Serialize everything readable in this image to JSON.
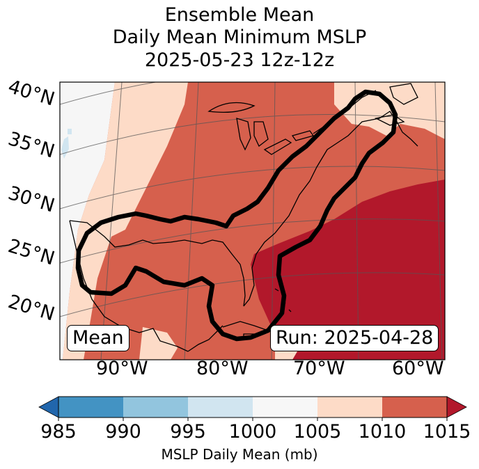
{
  "title": {
    "line1": "Ensemble Mean",
    "line2": "Daily Mean Minimum MSLP",
    "line3": "2025-05-23 12z-12z"
  },
  "map": {
    "lat_labels": [
      "40°N",
      "35°N",
      "30°N",
      "25°N",
      "20°N"
    ],
    "lon_labels": [
      "90°W",
      "80°W",
      "70°W",
      "60°W"
    ],
    "mean_box": "Mean",
    "run_box": "Run: 2025-04-28",
    "contour_color": "#000000",
    "region_colors": {
      "below_1000": "#f6f6f6",
      "range_1000_1005": "#fddbc7",
      "range_1005_1010": "#d6604d",
      "range_1010_1015": "#b2182b"
    }
  },
  "colorbar": {
    "label": "MSLP Daily Mean (mb)",
    "ticks": [
      "985",
      "990",
      "995",
      "1000",
      "1005",
      "1010",
      "1015"
    ],
    "colors": [
      "#4393c3",
      "#92c5de",
      "#d1e5f0",
      "#f7f7f7",
      "#fddbc7",
      "#d6604d"
    ],
    "under_color": "#2166ac",
    "over_color": "#b2182b"
  }
}
